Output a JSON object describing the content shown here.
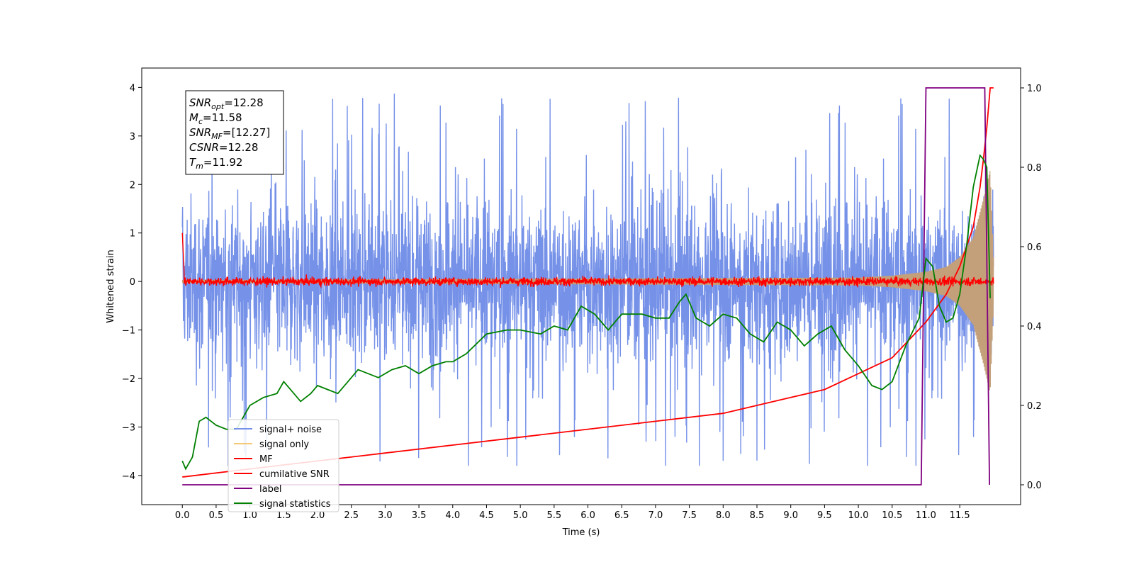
{
  "chart_data": {
    "type": "line",
    "title": "",
    "xlabel": "Time (s)",
    "ylabel": "Whitened strain",
    "xlim": [
      -0.6,
      12.4
    ],
    "ylim": [
      -4.6,
      4.4
    ],
    "y2lim": [
      -0.05,
      1.05
    ],
    "grid": false,
    "legend_position": "lower-left",
    "x_ticks": [
      "0.0",
      "0.5",
      "1.0",
      "1.5",
      "2.0",
      "2.5",
      "3.0",
      "3.5",
      "4.0",
      "4.5",
      "5.0",
      "5.5",
      "6.0",
      "6.5",
      "7.0",
      "7.5",
      "8.0",
      "8.5",
      "9.0",
      "9.5",
      "10.0",
      "10.5",
      "11.0",
      "11.5"
    ],
    "y_ticks": [
      "4",
      "3",
      "2",
      "1",
      "0",
      "−1",
      "−2",
      "−3",
      "−4"
    ],
    "y2_ticks": [
      "1.0",
      "0.8",
      "0.6",
      "0.4",
      "0.2",
      "0.0"
    ],
    "info_box": [
      {
        "sym": "SNR",
        "sub": "opt",
        "val": "=12.28"
      },
      {
        "sym": "M",
        "sub": "c",
        "val": "=11.58"
      },
      {
        "sym": "SNR",
        "sub": "MF",
        "val": "=[12.27]"
      },
      {
        "sym": "CSNR",
        "sub": "",
        "val": "=12.28"
      },
      {
        "sym": "T",
        "sub": "m",
        "val": "=11.92"
      }
    ],
    "series": [
      {
        "name": "signal+ noise",
        "color": "#7591e8",
        "axis": "left",
        "kind": "noise",
        "amplitude": 2.6,
        "x_range": [
          0.0,
          12.0
        ]
      },
      {
        "name": "signal only",
        "color": "#f5c97a",
        "axis": "left",
        "kind": "chirp",
        "envelope": {
          "x": [
            0.0,
            10.0,
            10.5,
            11.0,
            11.3,
            11.5,
            11.7,
            11.85,
            11.95,
            12.0
          ],
          "y": [
            0.03,
            0.08,
            0.12,
            0.2,
            0.3,
            0.5,
            0.9,
            1.7,
            2.3,
            0.5
          ]
        }
      },
      {
        "name": "MF",
        "color": "#ff0000",
        "axis": "left",
        "kind": "noise",
        "amplitude": 0.2,
        "x_range": [
          0.0,
          12.0
        ]
      },
      {
        "name": "cumilative SNR",
        "color": "#ff0000",
        "axis": "right",
        "x": [
          0.0,
          0.02,
          1.0,
          2.0,
          3.0,
          4.0,
          5.0,
          6.0,
          7.0,
          8.0,
          8.5,
          9.0,
          9.5,
          10.0,
          10.5,
          11.0,
          11.3,
          11.5,
          11.7,
          11.8,
          11.85,
          11.9,
          11.95,
          12.0
        ],
        "y": [
          0.02,
          0.02,
          0.04,
          0.06,
          0.08,
          0.1,
          0.12,
          0.14,
          0.16,
          0.18,
          0.2,
          0.22,
          0.24,
          0.28,
          0.32,
          0.41,
          0.48,
          0.55,
          0.65,
          0.75,
          0.82,
          0.9,
          1.0,
          1.0
        ]
      },
      {
        "name": "label",
        "color": "#800080",
        "axis": "right",
        "x": [
          0.0,
          10.93,
          11.0,
          11.87,
          11.94
        ],
        "y": [
          0.0,
          0.0,
          1.0,
          1.0,
          0.0
        ]
      },
      {
        "name": "signal statistics",
        "color": "#008000",
        "axis": "right",
        "x": [
          0.0,
          0.05,
          0.15,
          0.25,
          0.35,
          0.5,
          0.65,
          0.8,
          1.0,
          1.2,
          1.4,
          1.5,
          1.6,
          1.75,
          1.9,
          2.0,
          2.15,
          2.3,
          2.45,
          2.6,
          2.75,
          2.9,
          3.1,
          3.3,
          3.5,
          3.7,
          3.9,
          4.0,
          4.2,
          4.5,
          4.8,
          5.0,
          5.3,
          5.5,
          5.7,
          5.9,
          6.1,
          6.3,
          6.5,
          6.8,
          7.0,
          7.2,
          7.35,
          7.45,
          7.6,
          7.8,
          8.0,
          8.2,
          8.4,
          8.6,
          8.8,
          9.0,
          9.2,
          9.4,
          9.6,
          9.8,
          10.0,
          10.2,
          10.35,
          10.5,
          10.7,
          10.9,
          11.0,
          11.1,
          11.2,
          11.3,
          11.4,
          11.5,
          11.6,
          11.7,
          11.8,
          11.85,
          11.9,
          11.95
        ],
        "y": [
          0.06,
          0.04,
          0.07,
          0.16,
          0.17,
          0.15,
          0.14,
          0.14,
          0.2,
          0.22,
          0.23,
          0.26,
          0.24,
          0.21,
          0.23,
          0.25,
          0.24,
          0.23,
          0.26,
          0.29,
          0.28,
          0.27,
          0.29,
          0.3,
          0.28,
          0.3,
          0.31,
          0.31,
          0.33,
          0.38,
          0.39,
          0.39,
          0.38,
          0.4,
          0.39,
          0.45,
          0.43,
          0.39,
          0.43,
          0.43,
          0.42,
          0.42,
          0.46,
          0.48,
          0.42,
          0.4,
          0.43,
          0.42,
          0.38,
          0.36,
          0.41,
          0.39,
          0.35,
          0.38,
          0.4,
          0.34,
          0.3,
          0.25,
          0.24,
          0.26,
          0.35,
          0.42,
          0.57,
          0.55,
          0.45,
          0.41,
          0.42,
          0.48,
          0.6,
          0.75,
          0.83,
          0.82,
          0.8,
          0.47
        ]
      }
    ]
  }
}
